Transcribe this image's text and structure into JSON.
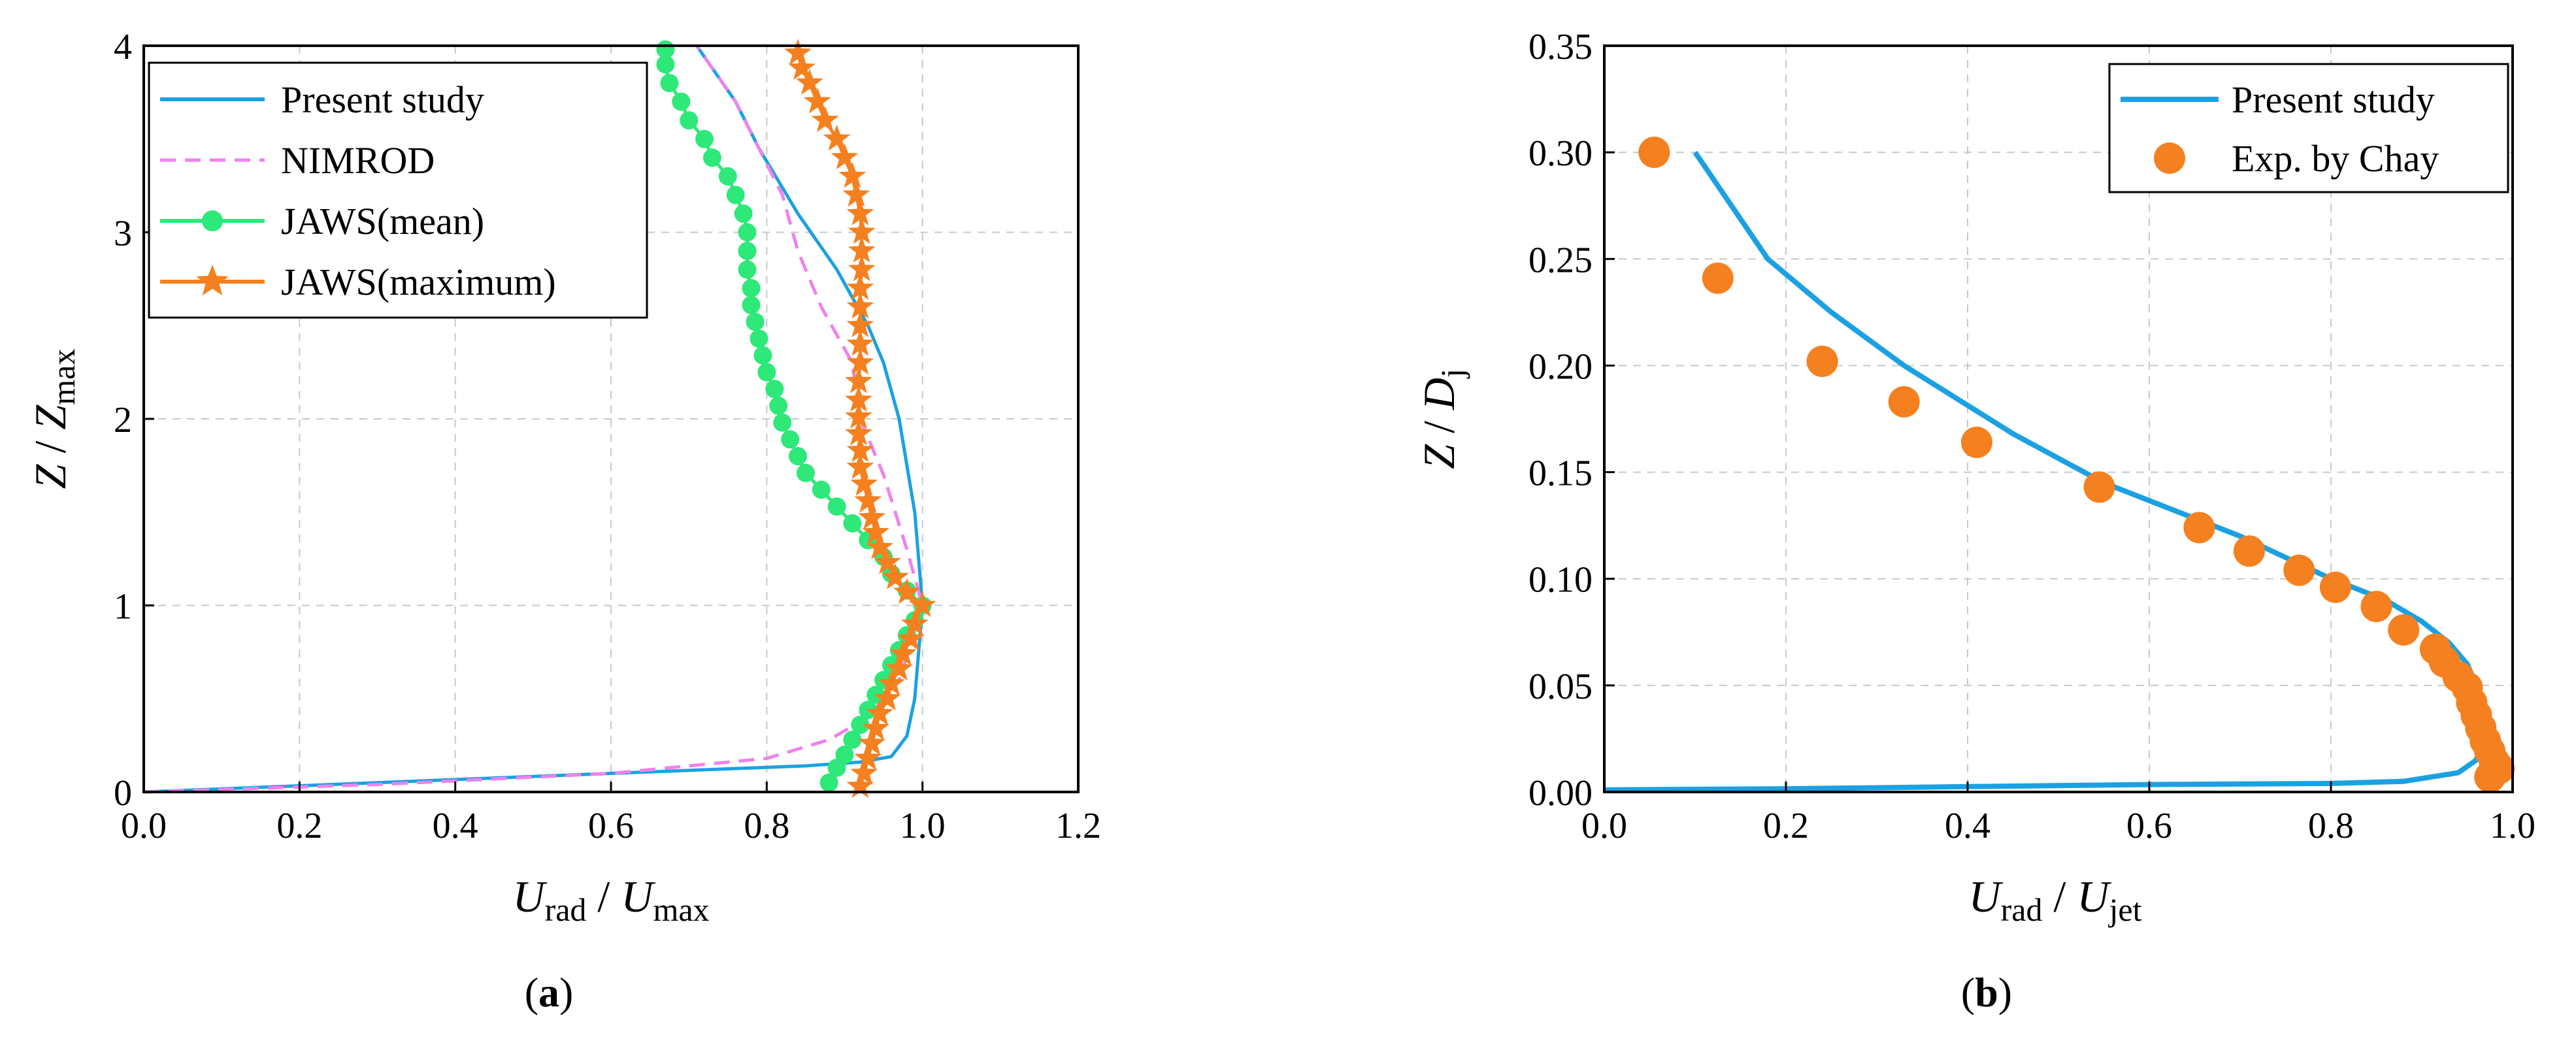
{
  "charts": [
    {
      "type": "line",
      "caption": {
        "open": "(",
        "letter": "a",
        "close": ")"
      },
      "xlabel": {
        "U": "U",
        "sub1": "rad",
        "slash": " / ",
        "U2": "U",
        "sub2": "max"
      },
      "ylabel": {
        "Z": "Z",
        "slash": " / ",
        "Z2": "Z",
        "sub": "max"
      },
      "xlim": [
        0,
        1.2
      ],
      "ylim": [
        0,
        4
      ],
      "xticks": [
        "0.0",
        "0.2",
        "0.4",
        "0.6",
        "0.8",
        "1.0",
        "1.2"
      ],
      "yticks": [
        "0",
        "1",
        "2",
        "3",
        "4"
      ],
      "legend_position": "top-left",
      "series": [
        {
          "name": "Present study",
          "style": "solid",
          "color": "#1ba1e2",
          "marker": "none",
          "points": [
            [
              0.0,
              0.0
            ],
            [
              0.3,
              0.05
            ],
            [
              0.6,
              0.1
            ],
            [
              0.85,
              0.14
            ],
            [
              0.92,
              0.16
            ],
            [
              0.96,
              0.19
            ],
            [
              0.98,
              0.3
            ],
            [
              0.99,
              0.5
            ],
            [
              1.0,
              1.0
            ],
            [
              0.99,
              1.5
            ],
            [
              0.97,
              2.0
            ],
            [
              0.95,
              2.3
            ],
            [
              0.93,
              2.5
            ],
            [
              0.89,
              2.8
            ],
            [
              0.84,
              3.1
            ],
            [
              0.79,
              3.45
            ],
            [
              0.76,
              3.7
            ],
            [
              0.71,
              4.0
            ]
          ]
        },
        {
          "name": "NIMROD",
          "style": "dashed",
          "color": "#ee82ee",
          "marker": "none",
          "points": [
            [
              0.0,
              0.0
            ],
            [
              0.3,
              0.04
            ],
            [
              0.6,
              0.1
            ],
            [
              0.8,
              0.18
            ],
            [
              0.88,
              0.28
            ],
            [
              0.93,
              0.4
            ],
            [
              0.97,
              0.6
            ],
            [
              1.0,
              1.0
            ],
            [
              0.98,
              1.3
            ],
            [
              0.95,
              1.7
            ],
            [
              0.92,
              2.0
            ],
            [
              0.91,
              2.3
            ],
            [
              0.87,
              2.6
            ],
            [
              0.84,
              2.9
            ],
            [
              0.82,
              3.2
            ],
            [
              0.79,
              3.45
            ],
            [
              0.76,
              3.7
            ],
            [
              0.71,
              4.0
            ]
          ]
        },
        {
          "name": "JAWS(mean)",
          "style": "solid",
          "color": "#2ee879",
          "marker": "circle",
          "points": [
            [
              0.88,
              0.05
            ],
            [
              0.89,
              0.13
            ],
            [
              0.9,
              0.2
            ],
            [
              0.91,
              0.28
            ],
            [
              0.92,
              0.36
            ],
            [
              0.93,
              0.44
            ],
            [
              0.94,
              0.52
            ],
            [
              0.95,
              0.6
            ],
            [
              0.96,
              0.68
            ],
            [
              0.97,
              0.76
            ],
            [
              0.98,
              0.84
            ],
            [
              0.99,
              0.92
            ],
            [
              1.0,
              1.0
            ],
            [
              0.98,
              1.08
            ],
            [
              0.96,
              1.17
            ],
            [
              0.95,
              1.26
            ],
            [
              0.93,
              1.35
            ],
            [
              0.91,
              1.44
            ],
            [
              0.89,
              1.53
            ],
            [
              0.87,
              1.62
            ],
            [
              0.85,
              1.71
            ],
            [
              0.84,
              1.8
            ],
            [
              0.83,
              1.89
            ],
            [
              0.82,
              1.98
            ],
            [
              0.815,
              2.07
            ],
            [
              0.81,
              2.16
            ],
            [
              0.8,
              2.25
            ],
            [
              0.795,
              2.34
            ],
            [
              0.79,
              2.43
            ],
            [
              0.785,
              2.52
            ],
            [
              0.78,
              2.61
            ],
            [
              0.78,
              2.7
            ],
            [
              0.775,
              2.8
            ],
            [
              0.775,
              2.9
            ],
            [
              0.775,
              3.0
            ],
            [
              0.77,
              3.1
            ],
            [
              0.76,
              3.2
            ],
            [
              0.75,
              3.3
            ],
            [
              0.73,
              3.4
            ],
            [
              0.72,
              3.5
            ],
            [
              0.7,
              3.6
            ],
            [
              0.69,
              3.7
            ],
            [
              0.675,
              3.8
            ],
            [
              0.67,
              3.9
            ],
            [
              0.67,
              3.98
            ]
          ]
        },
        {
          "name": "JAWS(maximum)",
          "style": "solid",
          "color": "#f5801f",
          "marker": "star",
          "points": [
            [
              0.92,
              0.03
            ],
            [
              0.925,
              0.1
            ],
            [
              0.93,
              0.18
            ],
            [
              0.935,
              0.26
            ],
            [
              0.94,
              0.34
            ],
            [
              0.945,
              0.42
            ],
            [
              0.955,
              0.5
            ],
            [
              0.96,
              0.58
            ],
            [
              0.97,
              0.66
            ],
            [
              0.975,
              0.74
            ],
            [
              0.985,
              0.82
            ],
            [
              0.99,
              0.9
            ],
            [
              1.0,
              1.0
            ],
            [
              0.98,
              1.07
            ],
            [
              0.965,
              1.15
            ],
            [
              0.955,
              1.23
            ],
            [
              0.945,
              1.31
            ],
            [
              0.94,
              1.39
            ],
            [
              0.935,
              1.47
            ],
            [
              0.93,
              1.56
            ],
            [
              0.925,
              1.65
            ],
            [
              0.92,
              1.74
            ],
            [
              0.92,
              1.83
            ],
            [
              0.918,
              1.92
            ],
            [
              0.918,
              2.01
            ],
            [
              0.918,
              2.1
            ],
            [
              0.918,
              2.2
            ],
            [
              0.92,
              2.3
            ],
            [
              0.92,
              2.4
            ],
            [
              0.92,
              2.5
            ],
            [
              0.92,
              2.6
            ],
            [
              0.92,
              2.7
            ],
            [
              0.922,
              2.8
            ],
            [
              0.922,
              2.9
            ],
            [
              0.922,
              3.0
            ],
            [
              0.92,
              3.1
            ],
            [
              0.915,
              3.2
            ],
            [
              0.91,
              3.3
            ],
            [
              0.9,
              3.4
            ],
            [
              0.89,
              3.5
            ],
            [
              0.875,
              3.6
            ],
            [
              0.865,
              3.7
            ],
            [
              0.855,
              3.8
            ],
            [
              0.845,
              3.88
            ],
            [
              0.84,
              3.96
            ]
          ]
        }
      ]
    },
    {
      "type": "line+scatter",
      "caption": {
        "open": "(",
        "letter": "b",
        "close": ")"
      },
      "xlabel": {
        "U": "U",
        "sub1": "rad",
        "slash": " / ",
        "U2": "U",
        "sub2": "jet"
      },
      "ylabel": {
        "Z": "Z",
        "slash": " / ",
        "D": "D",
        "sub": "j"
      },
      "xlim": [
        0,
        1.0
      ],
      "ylim": [
        0,
        0.35
      ],
      "xticks": [
        "0.0",
        "0.2",
        "0.4",
        "0.6",
        "0.8",
        "1.0"
      ],
      "yticks": [
        "0.00",
        "0.05",
        "0.10",
        "0.15",
        "0.20",
        "0.25",
        "0.30",
        "0.35"
      ],
      "legend_position": "top-right",
      "series": [
        {
          "name": "Present study",
          "style": "solid",
          "color": "#1ba1e2",
          "marker": "none",
          "points": [
            [
              0.0,
              0.001
            ],
            [
              0.2,
              0.0015
            ],
            [
              0.4,
              0.0025
            ],
            [
              0.6,
              0.0035
            ],
            [
              0.8,
              0.004
            ],
            [
              0.88,
              0.005
            ],
            [
              0.94,
              0.009
            ],
            [
              0.96,
              0.015
            ],
            [
              0.97,
              0.03
            ],
            [
              0.965,
              0.045
            ],
            [
              0.95,
              0.06
            ],
            [
              0.93,
              0.07
            ],
            [
              0.9,
              0.08
            ],
            [
              0.86,
              0.09
            ],
            [
              0.8,
              0.1
            ],
            [
              0.7,
              0.12
            ],
            [
              0.55,
              0.145
            ],
            [
              0.45,
              0.168
            ],
            [
              0.33,
              0.2
            ],
            [
              0.25,
              0.225
            ],
            [
              0.18,
              0.25
            ],
            [
              0.14,
              0.275
            ],
            [
              0.1,
              0.3
            ]
          ]
        },
        {
          "name": "Exp. by Chay",
          "style": "none",
          "color": "#f5801f",
          "marker": "circle",
          "points": [
            [
              0.055,
              0.3
            ],
            [
              0.125,
              0.241
            ],
            [
              0.24,
              0.202
            ],
            [
              0.33,
              0.183
            ],
            [
              0.41,
              0.164
            ],
            [
              0.545,
              0.143
            ],
            [
              0.655,
              0.124
            ],
            [
              0.71,
              0.113
            ],
            [
              0.765,
              0.104
            ],
            [
              0.805,
              0.096
            ],
            [
              0.85,
              0.087
            ],
            [
              0.88,
              0.076
            ],
            [
              0.915,
              0.067
            ],
            [
              0.925,
              0.061
            ],
            [
              0.94,
              0.054
            ],
            [
              0.95,
              0.049
            ],
            [
              0.955,
              0.042
            ],
            [
              0.96,
              0.036
            ],
            [
              0.965,
              0.03
            ],
            [
              0.97,
              0.024
            ],
            [
              0.975,
              0.019
            ],
            [
              0.98,
              0.014
            ],
            [
              0.985,
              0.011
            ],
            [
              0.975,
              0.007
            ]
          ]
        }
      ]
    }
  ]
}
